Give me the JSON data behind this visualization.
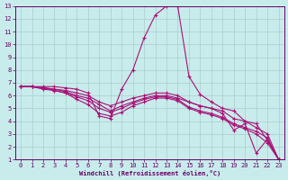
{
  "bg_color": "#c8ecec",
  "line_color": "#aa1177",
  "grid_color": "#aacccc",
  "xlim": [
    -0.5,
    23.5
  ],
  "ylim": [
    1,
    13
  ],
  "xticks": [
    0,
    1,
    2,
    3,
    4,
    5,
    6,
    7,
    8,
    9,
    10,
    11,
    12,
    13,
    14,
    15,
    16,
    17,
    18,
    19,
    20,
    21,
    22,
    23
  ],
  "yticks": [
    1,
    2,
    3,
    4,
    5,
    6,
    7,
    8,
    9,
    10,
    11,
    12,
    13
  ],
  "xlabel": "Windchill (Refroidissement éolien,°C)",
  "series": [
    [
      6.7,
      6.7,
      6.7,
      6.7,
      6.6,
      6.5,
      6.2,
      4.4,
      4.2,
      6.5,
      8.0,
      10.5,
      12.3,
      13.0,
      13.0,
      7.5,
      6.1,
      5.5,
      5.0,
      4.8,
      4.0,
      3.8,
      2.5,
      1.0
    ],
    [
      6.7,
      6.7,
      6.6,
      6.5,
      6.3,
      6.0,
      5.8,
      5.3,
      4.8,
      5.2,
      5.5,
      5.8,
      6.0,
      6.0,
      5.8,
      5.5,
      5.2,
      5.0,
      4.6,
      3.3,
      3.8,
      1.5,
      2.6,
      1.0
    ],
    [
      6.7,
      6.7,
      6.6,
      6.5,
      6.4,
      6.2,
      6.0,
      5.5,
      5.2,
      5.5,
      5.8,
      6.0,
      6.2,
      6.2,
      6.0,
      5.5,
      5.2,
      5.0,
      4.8,
      4.2,
      4.0,
      3.5,
      3.0,
      1.0
    ],
    [
      6.7,
      6.7,
      6.6,
      6.4,
      6.2,
      5.7,
      5.3,
      4.6,
      4.4,
      4.7,
      5.2,
      5.5,
      5.8,
      5.8,
      5.6,
      5.0,
      4.7,
      4.5,
      4.2,
      3.7,
      3.4,
      3.0,
      2.3,
      1.0
    ],
    [
      6.7,
      6.7,
      6.5,
      6.4,
      6.2,
      5.9,
      5.6,
      5.0,
      4.7,
      5.0,
      5.4,
      5.7,
      5.9,
      5.9,
      5.7,
      5.1,
      4.8,
      4.6,
      4.3,
      3.8,
      3.5,
      3.2,
      2.7,
      1.0
    ]
  ]
}
